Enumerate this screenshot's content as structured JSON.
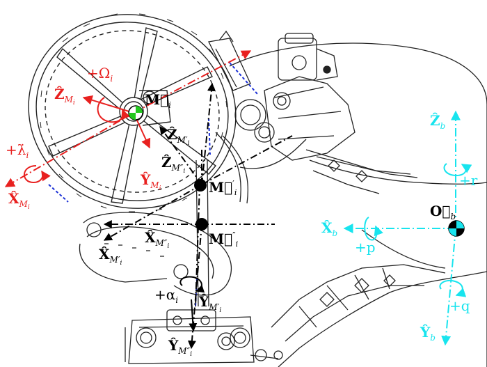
{
  "colors": {
    "red": "#e8201f",
    "cyan": "#18e4ee",
    "black": "#000000",
    "blue": "#1a2fd6",
    "line": "#222222"
  },
  "labels": {
    "z_m": {
      "main": "Ẑ",
      "sub": "M",
      "subi": "i"
    },
    "omega": {
      "main": "+Ω",
      "sub": "i"
    },
    "lambda": {
      "main": "+λ̇",
      "sub": "i"
    },
    "x_m": {
      "main": "X̂",
      "sub": "M",
      "subi": "i"
    },
    "y_m": {
      "main": "Ŷ",
      "sub": "M",
      "subi": "i"
    },
    "m_vec": {
      "main": "M⃗",
      "sub": "i"
    },
    "z_m_prime": {
      "main": "Ẑ",
      "sub": "M′",
      "subi": "i"
    },
    "z_m_dprime": {
      "main": "Ẑ",
      "sub": "M″",
      "subi": "i"
    },
    "m_prime_vec": {
      "main": "M⃗",
      "sub": "′",
      "subi": "i"
    },
    "x_m_dprime": {
      "main": "X̂",
      "sub": "M″",
      "subi": "i"
    },
    "m_dprime_vec": {
      "main": "M⃗",
      "sub": "″",
      "subi": "i"
    },
    "x_m_prime": {
      "main": "X̂",
      "sub": "M′",
      "subi": "i"
    },
    "alpha": {
      "main": "+α",
      "sub": "i"
    },
    "y_m_prime": {
      "main": "Ŷ",
      "sub": "M′",
      "subi": "i"
    },
    "y_m_dprime": {
      "main": "Ŷ",
      "sub": "M″",
      "subi": "i"
    },
    "z_b": {
      "main": "Ẑ",
      "sub": "b"
    },
    "r": {
      "main": "+r"
    },
    "x_b": {
      "main": "X̂",
      "sub": "b"
    },
    "o_b": {
      "main": "O⃗",
      "sub": "b"
    },
    "p": {
      "main": "+p"
    },
    "q": {
      "main": "+q"
    },
    "y_b": {
      "main": "Ŷ",
      "sub": "b"
    }
  }
}
